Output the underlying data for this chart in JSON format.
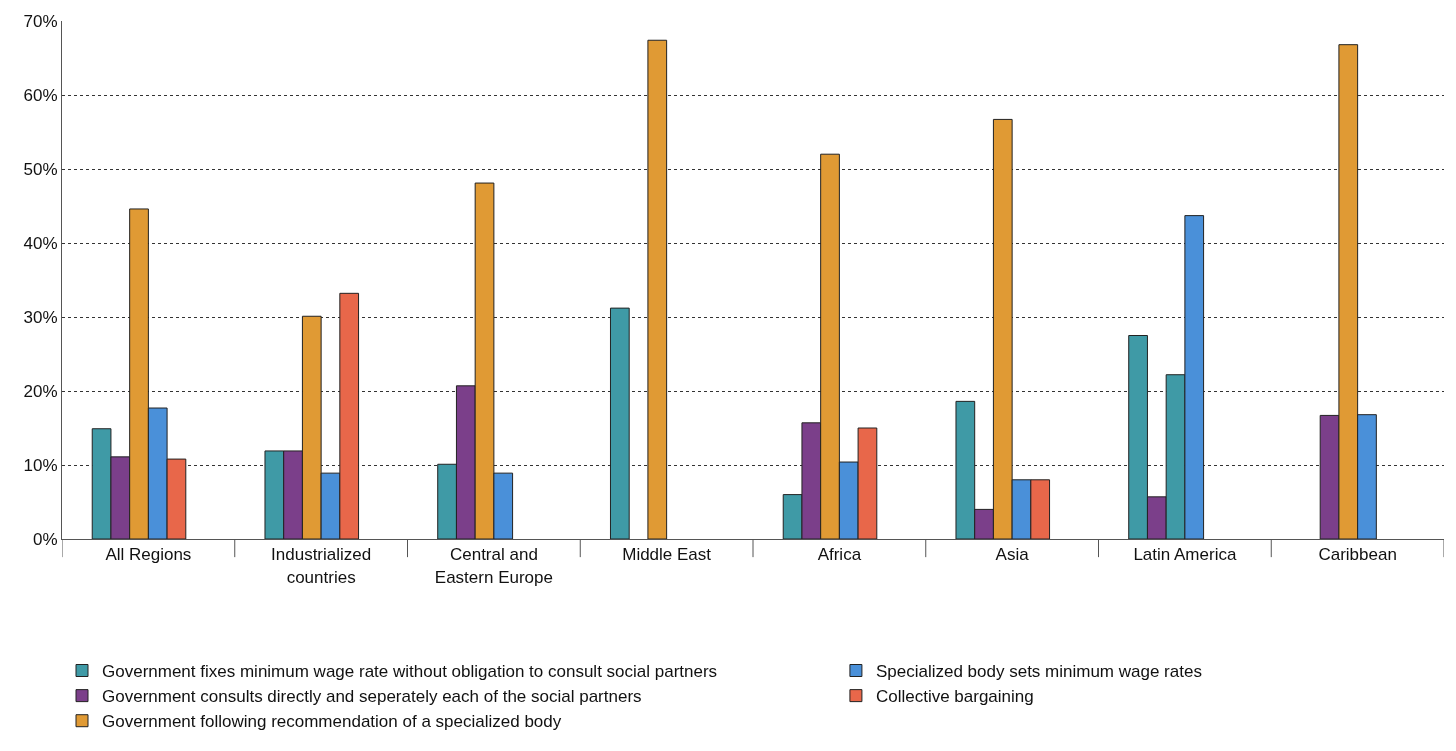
{
  "chart_data": {
    "type": "bar",
    "categories": [
      "All Regions",
      "Industrialized countries",
      "Central and Eastern Europe",
      "Middle East",
      "Africa",
      "Asia",
      "Latin America",
      "Caribbean"
    ],
    "series": [
      {
        "name": "Government fixes minimum wage rate without obligation to consult social partners",
        "color": "#3f9aa6",
        "values": [
          14.9,
          11.9,
          10.1,
          31.2,
          6.0,
          18.6,
          27.5,
          null
        ]
      },
      {
        "name": "Government consults directly and seperately each of the social partners",
        "color": "#7b3f8a",
        "values": [
          11.1,
          11.9,
          20.7,
          null,
          15.7,
          4.0,
          5.7,
          16.7
        ]
      },
      {
        "name": "Government following recommendation of a specialized body",
        "color": "#e09a34",
        "colors": [
          "#e09a34",
          "#e09a34",
          "#e09a34",
          "#e09a34",
          "#e09a34",
          "#e09a34",
          "#3f9aa6",
          "#e09a34"
        ],
        "values": [
          44.6,
          30.1,
          48.1,
          67.4,
          52.0,
          56.7,
          22.2,
          66.8
        ]
      },
      {
        "name": "Specialized body sets minimum wage rates",
        "color": "#4a90d9",
        "values": [
          17.7,
          8.9,
          8.9,
          null,
          10.4,
          8.0,
          43.7,
          16.8
        ]
      },
      {
        "name": "Collective bargaining",
        "color": "#e8674a",
        "values": [
          10.8,
          33.2,
          null,
          null,
          15.0,
          8.0,
          null,
          null
        ]
      }
    ],
    "ylim": [
      0,
      70
    ],
    "yticks": [
      {
        "value": 0,
        "label": "0%"
      },
      {
        "value": 10,
        "label": "10%"
      },
      {
        "value": 20,
        "label": "20%"
      },
      {
        "value": 30,
        "label": "30%"
      },
      {
        "value": 40,
        "label": "40%"
      },
      {
        "value": 50,
        "label": "50%"
      },
      {
        "value": 60,
        "label": "60%"
      },
      {
        "value": 70,
        "label": "70%"
      }
    ],
    "grid": "y",
    "legend": "bottom"
  }
}
